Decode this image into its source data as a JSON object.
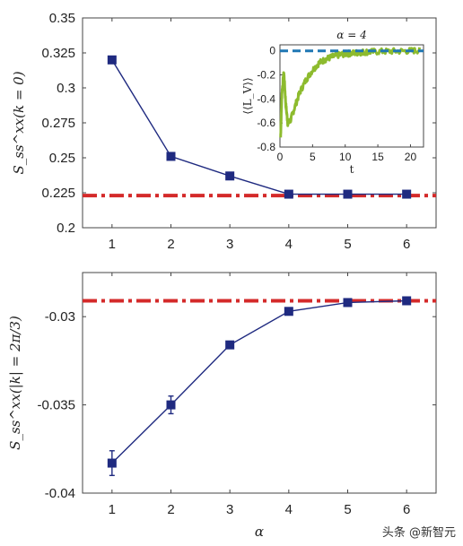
{
  "chart_data": [
    {
      "type": "line",
      "ylabel": "S_ss^xx(k = 0)",
      "xlim": [
        0.5,
        6.5
      ],
      "ylim": [
        0.2,
        0.35
      ],
      "xticks": [
        "1",
        "2",
        "3",
        "4",
        "5",
        "6"
      ],
      "yticks": [
        "0.2",
        "0.225",
        "0.25",
        "0.275",
        "0.3",
        "0.325",
        "0.35"
      ],
      "series": [
        {
          "x": [
            1,
            2,
            3,
            4,
            5,
            6
          ],
          "y": [
            0.32,
            0.251,
            0.237,
            0.224,
            0.224,
            0.224
          ],
          "color": "#1f2a80"
        }
      ],
      "reference_line": {
        "y": 0.223,
        "color": "#d42a2a",
        "style": "dash-dot"
      },
      "inset": {
        "title": "α = 4",
        "xlabel": "t",
        "ylabel": "⟨⟨L_V⟩⟩",
        "xlim": [
          0,
          22
        ],
        "ylim": [
          -0.8,
          0.05
        ],
        "xticks": [
          "0",
          "5",
          "10",
          "15",
          "20"
        ],
        "yticks": [
          "0",
          "-0.2",
          "-0.4",
          "-0.6",
          "-0.8"
        ],
        "reference_line": {
          "y": 0,
          "color": "#1f77b4",
          "style": "dashed"
        },
        "curve_color": "#8dbb2e",
        "curve_points": [
          [
            0.1,
            -0.72
          ],
          [
            0.3,
            -0.35
          ],
          [
            0.6,
            -0.18
          ],
          [
            0.9,
            -0.45
          ],
          [
            1.2,
            -0.6
          ],
          [
            1.6,
            -0.58
          ],
          [
            2.2,
            -0.48
          ],
          [
            3,
            -0.35
          ],
          [
            4,
            -0.24
          ],
          [
            5,
            -0.16
          ],
          [
            6,
            -0.1
          ],
          [
            7,
            -0.07
          ],
          [
            8,
            -0.05
          ],
          [
            9,
            -0.035
          ],
          [
            10,
            -0.025
          ],
          [
            11,
            -0.02
          ],
          [
            12,
            -0.015
          ],
          [
            13,
            -0.01
          ],
          [
            14,
            -0.008
          ],
          [
            16,
            -0.005
          ],
          [
            18,
            -0.003
          ],
          [
            20,
            0
          ],
          [
            21.5,
            0.005
          ]
        ]
      }
    },
    {
      "type": "line",
      "xlabel": "α",
      "ylabel": "S_ss^xx(|k| = 2π/3)",
      "xlim": [
        0.5,
        6.5
      ],
      "ylim": [
        -0.04,
        -0.0275
      ],
      "xticks": [
        "1",
        "2",
        "3",
        "4",
        "5",
        "6"
      ],
      "yticks": [
        "-0.04",
        "-0.035",
        "-0.03"
      ],
      "series": [
        {
          "x": [
            1,
            2,
            3,
            4,
            5,
            6
          ],
          "y": [
            -0.0383,
            -0.035,
            -0.0316,
            -0.0297,
            -0.0292,
            -0.0291
          ],
          "yerr": [
            0.0007,
            0.0005,
            0.0002,
            0.0002,
            0.0002,
            0.0002
          ],
          "color": "#1f2a80"
        }
      ],
      "reference_line": {
        "y": -0.0291,
        "color": "#d42a2a",
        "style": "dash-dot"
      }
    }
  ],
  "watermark": "头条 @新智元"
}
